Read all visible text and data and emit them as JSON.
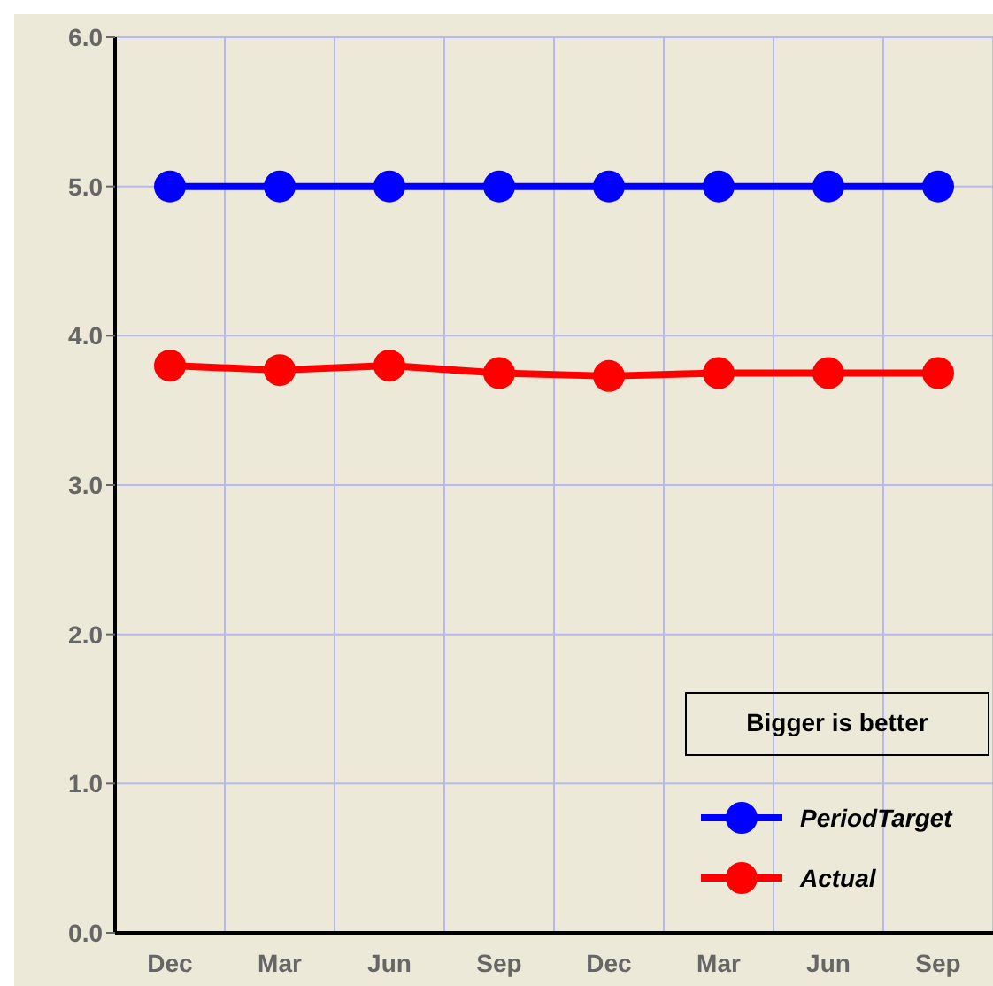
{
  "chart_data": {
    "type": "line",
    "categories": [
      "Dec",
      "Mar",
      "Jun",
      "Sep",
      "Dec",
      "Mar",
      "Jun",
      "Sep"
    ],
    "series": [
      {
        "name": "PeriodTarget",
        "color": "#0000ff",
        "values": [
          5,
          5,
          5,
          5,
          5,
          5,
          5,
          5
        ]
      },
      {
        "name": "Actual",
        "color": "#ff0000",
        "values": [
          3.8,
          3.77,
          3.8,
          3.75,
          3.73,
          3.75,
          3.75,
          3.75
        ]
      }
    ],
    "ylim": [
      0,
      6
    ],
    "yticks": [
      {
        "value": 0,
        "label": "0.0"
      },
      {
        "value": 1,
        "label": "1.0"
      },
      {
        "value": 2,
        "label": "2.0"
      },
      {
        "value": 3,
        "label": "3.0"
      },
      {
        "value": 4,
        "label": "4.0"
      },
      {
        "value": 5,
        "label": "5.0"
      },
      {
        "value": 6,
        "label": "6.0"
      }
    ],
    "grid": true,
    "legend": "bottom right",
    "marker": "circle",
    "line_style": "solid",
    "annotations": [
      "Bigger is better"
    ]
  }
}
